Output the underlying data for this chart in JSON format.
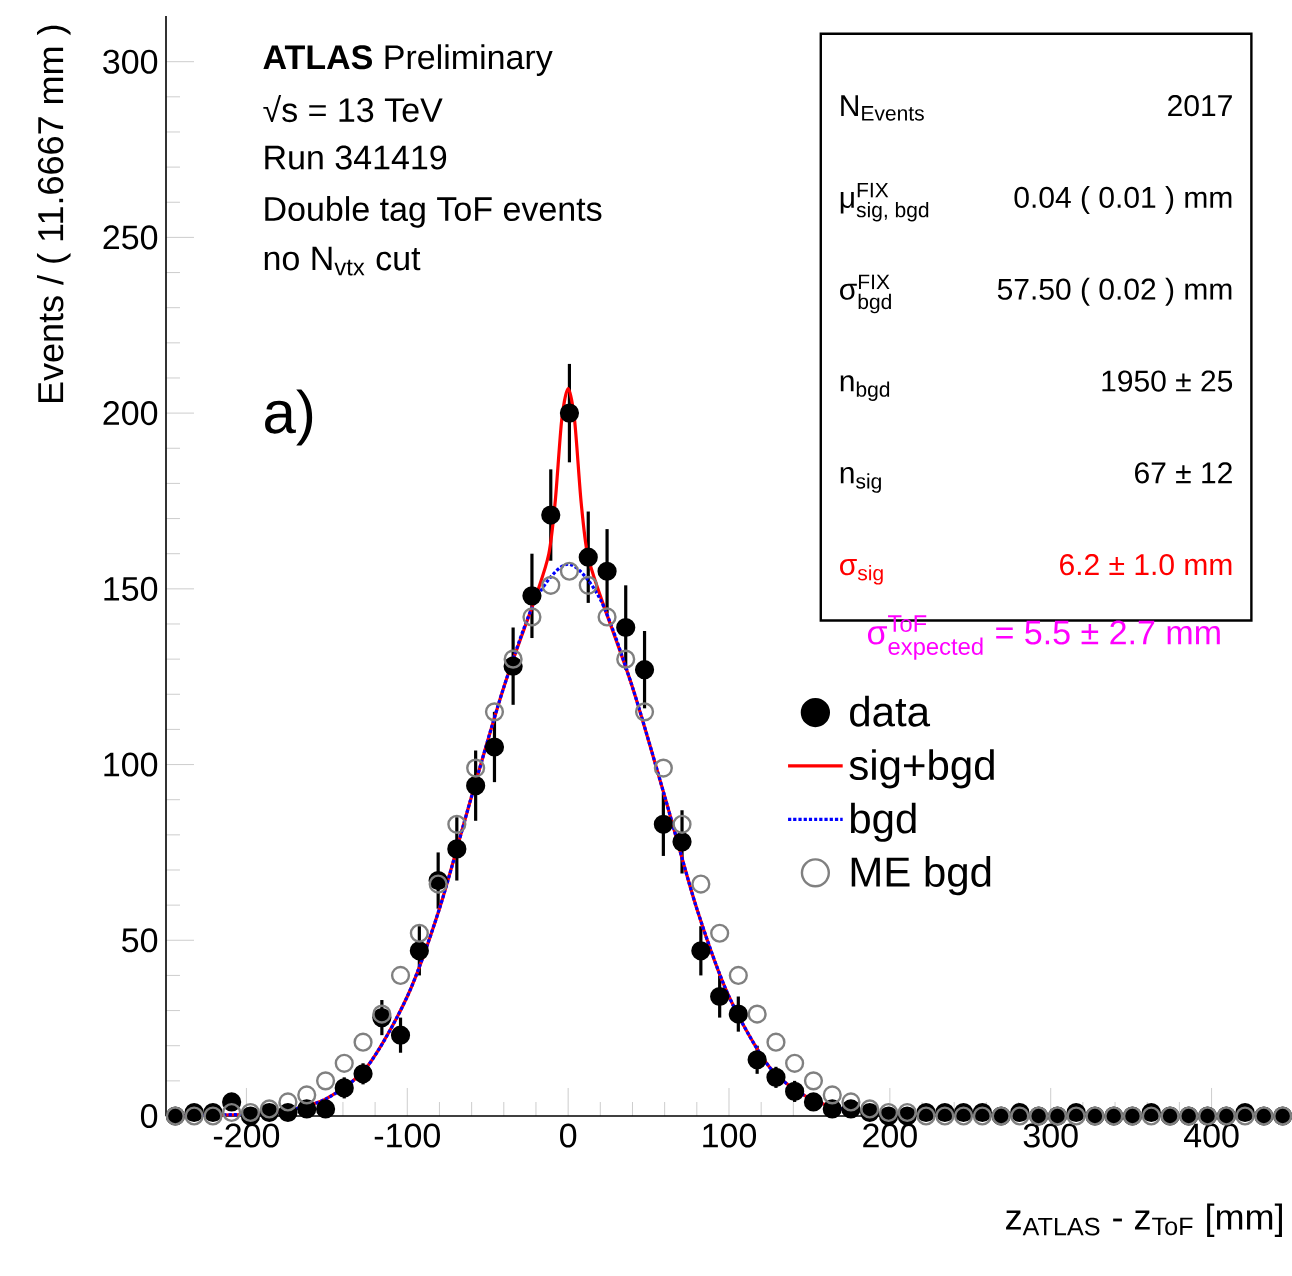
{
  "chart_data": {
    "type": "scatter",
    "xlabel": "z$_{ATLAS}$ - z$_{ToF}$ [mm]",
    "ylabel": "Events / ( 11.6667 mm )",
    "xlim": [
      -250,
      450
    ],
    "ylim": [
      0,
      313
    ],
    "xticks": [
      -200,
      -100,
      0,
      100,
      200,
      300,
      400
    ],
    "yticks": [
      0,
      50,
      100,
      150,
      200,
      250,
      300
    ],
    "grid": false,
    "legend": "right",
    "x": [
      -244.2,
      -232.5,
      -220.8,
      -209.2,
      -197.5,
      -185.8,
      -174.2,
      -162.5,
      -150.8,
      -139.2,
      -127.5,
      -115.8,
      -104.2,
      -92.5,
      -80.8,
      -69.2,
      -57.5,
      -45.8,
      -34.2,
      -22.5,
      -10.8,
      0.8,
      12.5,
      24.2,
      35.8,
      47.5,
      59.2,
      70.8,
      82.5,
      94.2,
      105.8,
      117.5,
      129.2,
      140.8,
      152.5,
      164.2,
      175.8,
      187.5,
      199.2,
      210.8,
      222.5,
      234.2,
      245.8,
      257.5,
      269.2,
      280.8,
      292.5,
      304.2,
      315.8,
      327.5,
      339.2,
      350.8,
      362.5,
      374.2,
      385.8,
      397.5,
      409.2,
      420.8,
      432.5,
      444.2
    ],
    "series": [
      {
        "name": "data",
        "type": "scatter",
        "marker": "circle",
        "color": "#000000",
        "values": [
          0,
          1,
          1,
          4,
          0,
          1,
          1,
          2,
          2,
          8,
          12,
          28,
          23,
          47,
          67,
          76,
          94,
          105,
          128,
          148,
          171,
          200,
          159,
          155,
          139,
          127,
          83,
          78,
          47,
          34,
          29,
          16,
          11,
          7,
          4,
          2,
          2,
          1,
          0,
          0,
          1,
          1,
          1,
          1,
          0,
          1,
          0,
          0,
          1,
          0,
          0,
          0,
          1,
          0,
          0,
          0,
          0,
          1,
          0,
          0
        ],
        "errors": [
          null,
          1,
          1,
          2,
          null,
          1,
          1,
          1,
          1,
          3,
          3,
          5,
          5,
          7,
          8,
          9,
          10,
          10,
          11,
          12,
          13,
          14,
          13,
          12,
          12,
          11,
          9,
          9,
          7,
          6,
          5,
          4,
          3,
          3,
          2,
          1,
          1,
          1,
          null,
          null,
          1,
          1,
          1,
          1,
          null,
          1,
          null,
          null,
          1,
          null,
          null,
          null,
          1,
          null,
          null,
          null,
          null,
          1,
          null,
          null
        ]
      },
      {
        "name": "sig+bgd",
        "type": "line",
        "color": "#ff0000",
        "line_style": "solid",
        "x": [
          -250,
          -200,
          -175,
          -150,
          -125,
          -100,
          -80,
          -60,
          -40,
          -20,
          -12,
          -8,
          -4,
          0,
          4,
          8,
          12,
          20,
          40,
          60,
          80,
          100,
          125,
          150,
          175
        ],
        "values": [
          0,
          0.5,
          1.5,
          5,
          14,
          34,
          59,
          91,
          122,
          148,
          160,
          175,
          198,
          207,
          198,
          175,
          160,
          148,
          122,
          91,
          59,
          34,
          14,
          5,
          1.5
        ]
      },
      {
        "name": "bgd",
        "type": "line",
        "color": "#0000ff",
        "line_style": "dotted",
        "x": [
          -250,
          -200,
          -175,
          -150,
          -125,
          -100,
          -80,
          -60,
          -40,
          -20,
          0,
          20,
          40,
          60,
          80,
          100,
          125,
          150,
          175
        ],
        "values": [
          0,
          0.5,
          1.5,
          5,
          14,
          34,
          59,
          91,
          122,
          147,
          157,
          147,
          122,
          91,
          59,
          34,
          14,
          5,
          1.5
        ]
      },
      {
        "name": "ME bgd",
        "type": "scatter",
        "marker": "circle",
        "color": "#808080",
        "values": [
          0,
          0,
          0,
          1,
          1,
          2,
          4,
          6,
          10,
          15,
          21,
          29,
          40,
          52,
          66,
          83,
          99,
          115,
          130,
          142,
          151,
          155,
          151,
          142,
          130,
          115,
          99,
          83,
          66,
          52,
          40,
          29,
          21,
          15,
          10,
          6,
          4,
          2,
          1,
          1,
          0,
          0,
          0,
          0,
          0,
          0,
          0,
          0,
          0,
          0,
          0,
          0,
          0,
          0,
          0,
          0,
          0,
          0,
          0,
          0
        ]
      }
    ],
    "annotations": [
      "**ATLAS** Preliminary",
      "√s = 13 TeV",
      "Run 341419",
      "Double tag ToF events",
      "no N$_{vtx}$ cut",
      "a)",
      "N$_{Events}$",
      "2017",
      "\\text{μ}^{\\text{FIX}}_{\\text{sig, bgd}}",
      "0.04 ( 0.01 ) mm",
      "\\text{σ}^{\\text{FIX}}_{\\text{bgd}}",
      "57.50 ( 0.02 ) mm",
      "n$_{bgd}$",
      "1950 ±   25",
      "n$_{sig}$",
      "67 ±   12",
      "σ$_{sig}$",
      "6.2 ±   1.0 mm",
      "\\text{σ}^{\\text{ToF}}_{\\text{expected}}\\text{ =  5.5 ±  2.7 mm}"
    ]
  }
}
